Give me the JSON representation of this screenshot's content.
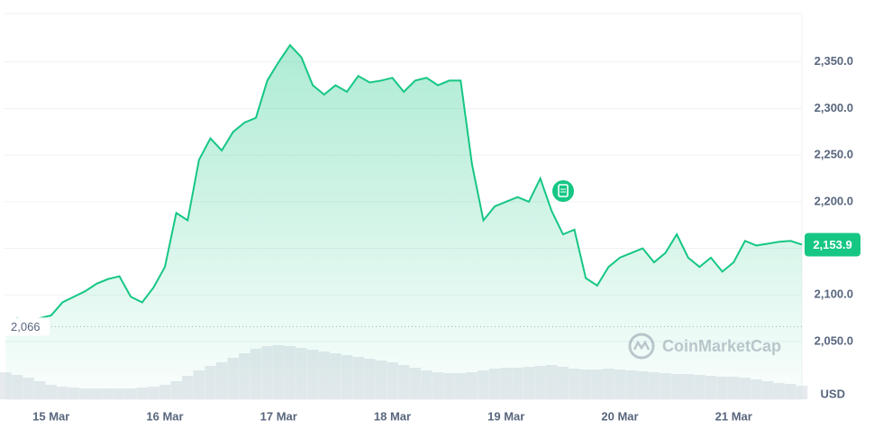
{
  "chart_data": {
    "type": "line",
    "x": [
      -0.4,
      -0.3,
      -0.2,
      -0.1,
      0,
      0.1,
      0.2,
      0.3,
      0.4,
      0.5,
      0.6,
      0.7,
      0.8,
      0.9,
      1,
      1.1,
      1.2,
      1.3,
      1.4,
      1.5,
      1.6,
      1.7,
      1.8,
      1.9,
      2,
      2.1,
      2.2,
      2.3,
      2.4,
      2.5,
      2.6,
      2.7,
      2.8,
      2.9,
      3,
      3.1,
      3.2,
      3.3,
      3.4,
      3.5,
      3.6,
      3.7,
      3.8,
      3.9,
      4,
      4.1,
      4.2,
      4.3,
      4.4,
      4.5,
      4.6,
      4.7,
      4.8,
      4.9,
      5,
      5.1,
      5.2,
      5.3,
      5.4,
      5.5,
      5.6,
      5.7,
      5.8,
      5.9,
      6,
      6.1,
      6.2,
      6.3,
      6.4,
      6.5,
      6.6
    ],
    "series": [
      {
        "name": "Price",
        "color": "#16c784",
        "values": [
          2072,
          2075,
          2073,
          2075,
          2078,
          2092,
          2098,
          2104,
          2112,
          2117,
          2120,
          2098,
          2092,
          2108,
          2130,
          2188,
          2180,
          2245,
          2268,
          2255,
          2275,
          2285,
          2290,
          2330,
          2350,
          2368,
          2355,
          2325,
          2315,
          2325,
          2318,
          2335,
          2328,
          2330,
          2333,
          2318,
          2330,
          2333,
          2325,
          2330,
          2330,
          2240,
          2180,
          2195,
          2200,
          2205,
          2200,
          2225,
          2190,
          2165,
          2170,
          2118,
          2110,
          2130,
          2140,
          2145,
          2150,
          2135,
          2145,
          2165,
          2140,
          2130,
          2140,
          2125,
          2135,
          2158,
          2153,
          2155,
          2157,
          2158,
          2154
        ]
      }
    ],
    "volume": [
      30,
      27,
      24,
      20,
      16,
      14,
      13,
      12,
      12,
      12,
      12,
      12,
      13,
      14,
      16,
      20,
      26,
      32,
      37,
      41,
      46,
      51,
      56,
      59,
      60,
      59,
      57,
      55,
      53,
      51,
      49,
      47,
      45,
      43,
      41,
      38,
      35,
      32,
      30,
      29,
      29,
      30,
      32,
      34,
      35,
      35,
      36,
      37,
      38,
      36,
      34,
      33,
      33,
      34,
      33,
      32,
      31,
      30,
      29,
      28,
      28,
      27,
      26,
      25,
      25,
      24,
      22,
      20,
      18,
      17,
      15
    ],
    "xlim": [
      -0.41,
      6.6
    ],
    "xticks": [
      {
        "value": 0,
        "label": "15 Mar"
      },
      {
        "value": 1,
        "label": "16 Mar"
      },
      {
        "value": 2,
        "label": "17 Mar"
      },
      {
        "value": 3,
        "label": "18 Mar"
      },
      {
        "value": 4,
        "label": "19 Mar"
      },
      {
        "value": 5,
        "label": "20 Mar"
      },
      {
        "value": 6,
        "label": "21 Mar"
      }
    ],
    "ylim": [
      1988,
      2402
    ],
    "yticks": [
      {
        "value": 2050,
        "label": "2,050.0"
      },
      {
        "value": 2100,
        "label": "2,100.0"
      },
      {
        "value": 2150,
        "label": "2,150.0"
      },
      {
        "value": 2200,
        "label": "2,200.0"
      },
      {
        "value": 2250,
        "label": "2,250.0"
      },
      {
        "value": 2300,
        "label": "2,300.0"
      },
      {
        "value": 2350,
        "label": "2,350.0"
      }
    ],
    "reference_line": {
      "value": 2066,
      "label": "2,066"
    },
    "current_price": {
      "value": 2153.9,
      "label": "2,153.9"
    },
    "y_unit": "USD",
    "watermark": "CoinMarketCap",
    "grid": true
  }
}
